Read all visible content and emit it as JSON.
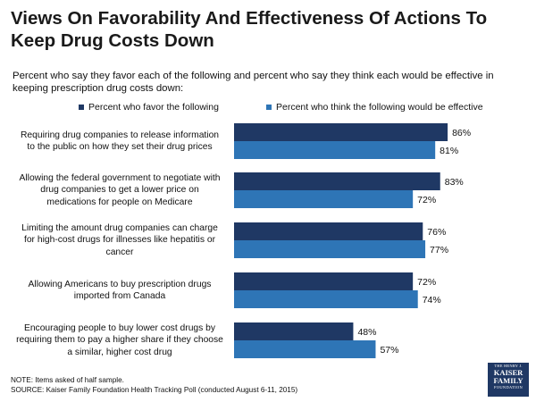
{
  "colors": {
    "favor": "#1f3864",
    "effective": "#2e75b6",
    "title": "#1a1a1a"
  },
  "chart_data": {
    "type": "bar",
    "orientation": "horizontal",
    "title": "Views On Favorability And Effectiveness Of Actions To Keep Drug Costs Down",
    "subtitle": "Percent who say they favor each of the following and percent who say they think each would be effective in keeping prescription drug costs down:",
    "categories": [
      [
        "Requiring drug companies to release information",
        "to the public on how they set their drug prices"
      ],
      [
        "Allowing the federal government to negotiate with",
        "drug companies to get a lower price on",
        "medications for people on Medicare"
      ],
      [
        "Limiting the amount drug companies can charge",
        "for high-cost drugs for illnesses like hepatitis or",
        "cancer"
      ],
      [
        "Allowing Americans to buy prescription drugs",
        "imported from Canada"
      ],
      [
        "Encouraging people to buy lower cost drugs by",
        "requiring them to pay a higher share if they choose",
        "a similar, higher cost drug"
      ]
    ],
    "series": [
      {
        "name": "Percent who favor the following",
        "values": [
          86,
          83,
          76,
          72,
          48
        ],
        "labels": [
          "86%",
          "83%",
          "76%",
          "72%",
          "48%"
        ]
      },
      {
        "name": "Percent who think the following would be effective",
        "values": [
          81,
          72,
          77,
          74,
          57
        ],
        "labels": [
          "81%",
          "72%",
          "77%",
          "74%",
          "57%"
        ]
      }
    ],
    "xlim": [
      0,
      100
    ],
    "unit": "%",
    "legend_position": "top",
    "grid": false
  },
  "footer": {
    "note": "NOTE: Items asked of half sample.",
    "source": "SOURCE: Kaiser Family Foundation Health Tracking Poll (conducted August 6-11, 2015)"
  },
  "logo": {
    "line1": "THE HENRY J.",
    "line2": "KAISER",
    "line3": "FAMILY",
    "line4": "FOUNDATION"
  }
}
